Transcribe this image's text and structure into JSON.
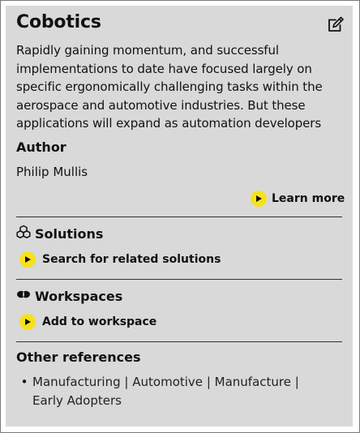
{
  "card": {
    "title": "Cobotics",
    "description": "Rapidly gaining momentum, and successful implementations to date have focused largely on specific ergonomically challenging tasks within the aerospace and automotive industries. But these applications will expand as automation developers",
    "author_heading": "Author",
    "author_name": "Philip Mullis",
    "learn_more_label": "Learn more"
  },
  "solutions": {
    "heading": "Solutions",
    "action_label": "Search for related solutions"
  },
  "workspaces": {
    "heading": "Workspaces",
    "action_label": "Add to workspace"
  },
  "references": {
    "heading": "Other references",
    "links": [
      "Manufacturing",
      "Automotive",
      "Manufacture",
      "Early Adopters"
    ],
    "separator": "|"
  },
  "colors": {
    "panel_background": "#d9d9d9",
    "play_button": "#f5e21c",
    "divider": "#333333"
  },
  "icons": {
    "edit": "edit-icon",
    "solutions": "cubes-icon",
    "workspaces": "workspaces-icon",
    "play": "play-icon"
  }
}
